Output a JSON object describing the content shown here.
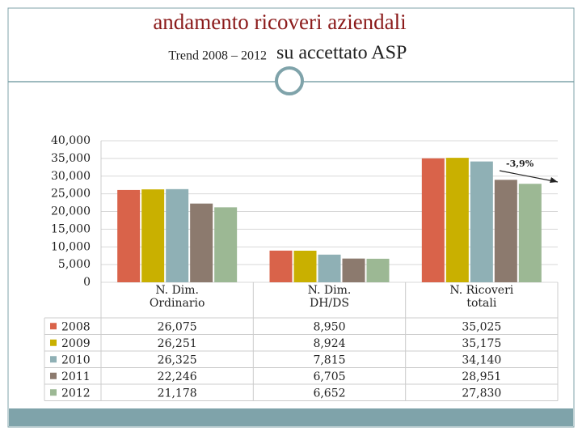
{
  "header": {
    "title": "andamento ricoveri aziendali",
    "subtitle_small": "Trend 2008 – 2012",
    "subtitle_large": "su accettato ASP"
  },
  "chart_data": {
    "type": "bar",
    "categories": [
      "N. Dim. Ordinario",
      "N. Dim. DH/DS",
      "N. Ricoveri totali"
    ],
    "series": [
      {
        "name": "2008",
        "color": "#d9634a",
        "values": [
          26075,
          8950,
          35025
        ],
        "value_labels": [
          "26,075",
          "8,950",
          "35,025"
        ]
      },
      {
        "name": "2009",
        "color": "#c9b000",
        "values": [
          26251,
          8924,
          35175
        ],
        "value_labels": [
          "26,251",
          "8,924",
          "35,175"
        ]
      },
      {
        "name": "2010",
        "color": "#8fb0b5",
        "values": [
          26325,
          7815,
          34140
        ],
        "value_labels": [
          "26,325",
          "7,815",
          "34,140"
        ]
      },
      {
        "name": "2011",
        "color": "#8c7a6e",
        "values": [
          22246,
          6705,
          28951
        ],
        "value_labels": [
          "22,246",
          "6,705",
          "28,951"
        ]
      },
      {
        "name": "2012",
        "color": "#9cb894",
        "values": [
          21178,
          6652,
          27830
        ],
        "value_labels": [
          "21,178",
          "6,652",
          "27,830"
        ]
      }
    ],
    "ylim": [
      0,
      40000
    ],
    "yticks": [
      0,
      {
        "value": 5000,
        "label": "5,000"
      },
      {
        "value": 10000,
        "label": "10,000"
      },
      {
        "value": 15000,
        "label": "15,000"
      },
      {
        "value": 20000,
        "label": "20,000"
      },
      {
        "value": 25000,
        "label": "25,000"
      },
      {
        "value": 30000,
        "label": "30,000"
      },
      {
        "value": 35000,
        "label": "35,000"
      },
      {
        "value": 40000,
        "label": "40,000"
      }
    ],
    "grid": true,
    "annotation": "-3,9%"
  }
}
